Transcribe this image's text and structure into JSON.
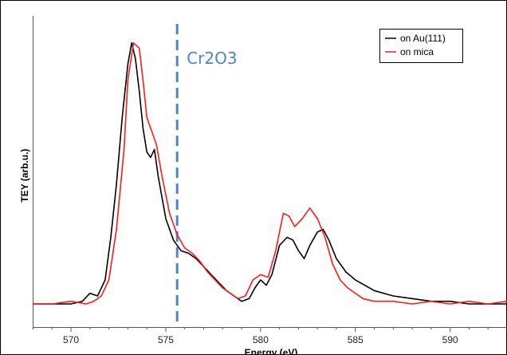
{
  "chart_data": {
    "type": "line",
    "title": "",
    "xlabel": "Energy (eV)",
    "ylabel": "TEY (arb.u.)",
    "xlim": [
      568.0,
      593.0
    ],
    "ylim": [
      0,
      1.0
    ],
    "xticks": [
      570,
      575,
      580,
      585,
      590
    ],
    "grid": false,
    "legend_position": "top-right",
    "annotation": {
      "text": "Cr2O3",
      "x": 575.6,
      "color": "#4a86c8"
    },
    "series": [
      {
        "name": "on Au(111)",
        "color": "#000000",
        "x": [
          568.0,
          569.0,
          570.0,
          570.6,
          571.0,
          571.4,
          571.8,
          572.1,
          572.4,
          572.7,
          573.0,
          573.2,
          573.4,
          573.6,
          573.8,
          574.0,
          574.2,
          574.4,
          574.6,
          575.0,
          575.4,
          575.8,
          576.2,
          576.6,
          577.0,
          577.4,
          577.8,
          578.2,
          578.6,
          579.0,
          579.4,
          579.7,
          580.0,
          580.3,
          580.6,
          581.0,
          581.4,
          581.7,
          582.0,
          582.3,
          582.6,
          583.0,
          583.3,
          583.6,
          584.0,
          584.5,
          585.0,
          585.5,
          586.0,
          587.0,
          588.0,
          589.0,
          590.0,
          591.0,
          592.0,
          593.0
        ],
        "y": [
          0.0,
          0.0,
          0.0,
          0.01,
          0.04,
          0.03,
          0.09,
          0.25,
          0.45,
          0.7,
          0.9,
          0.98,
          0.92,
          0.8,
          0.66,
          0.57,
          0.55,
          0.58,
          0.48,
          0.32,
          0.24,
          0.2,
          0.19,
          0.17,
          0.14,
          0.11,
          0.08,
          0.05,
          0.03,
          0.01,
          0.02,
          0.06,
          0.09,
          0.07,
          0.11,
          0.22,
          0.25,
          0.24,
          0.2,
          0.17,
          0.22,
          0.27,
          0.28,
          0.24,
          0.17,
          0.12,
          0.09,
          0.07,
          0.05,
          0.03,
          0.02,
          0.01,
          0.01,
          0.0,
          0.0,
          0.0
        ]
      },
      {
        "name": "on mica",
        "color": "#ff1a1a",
        "x": [
          568.0,
          569.0,
          570.0,
          570.8,
          571.2,
          571.6,
          572.0,
          572.4,
          572.8,
          573.0,
          573.3,
          573.6,
          573.8,
          574.0,
          574.2,
          574.5,
          574.8,
          575.2,
          575.6,
          576.0,
          576.4,
          576.8,
          577.2,
          577.6,
          578.0,
          578.4,
          578.8,
          579.2,
          579.6,
          580.0,
          580.4,
          580.8,
          581.2,
          581.5,
          581.8,
          582.2,
          582.6,
          583.0,
          583.4,
          583.8,
          584.2,
          584.6,
          585.0,
          585.4,
          586.0,
          587.0,
          588.0,
          589.0,
          590.0,
          591.0,
          592.0,
          593.0
        ],
        "y": [
          0.0,
          0.0,
          0.01,
          0.0,
          0.01,
          0.03,
          0.09,
          0.28,
          0.58,
          0.84,
          0.98,
          0.96,
          0.84,
          0.7,
          0.66,
          0.6,
          0.48,
          0.34,
          0.26,
          0.21,
          0.19,
          0.16,
          0.12,
          0.09,
          0.06,
          0.04,
          0.02,
          0.03,
          0.09,
          0.11,
          0.1,
          0.2,
          0.34,
          0.33,
          0.29,
          0.32,
          0.36,
          0.32,
          0.25,
          0.15,
          0.09,
          0.06,
          0.04,
          0.02,
          0.01,
          0.01,
          0.0,
          0.01,
          0.0,
          0.01,
          0.0,
          0.01
        ]
      }
    ]
  }
}
